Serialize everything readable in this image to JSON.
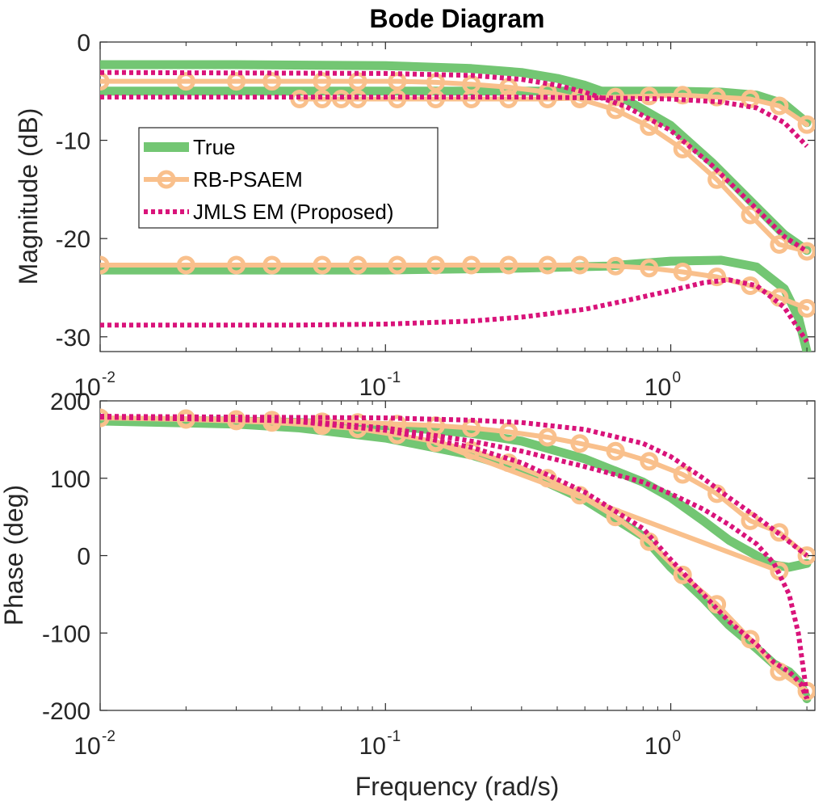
{
  "chart_data": [
    {
      "type": "line",
      "panel": "magnitude",
      "title": "Bode Diagram",
      "xlabel": "",
      "ylabel": "Magnitude (dB)",
      "xscale": "log",
      "xlim": [
        0.01,
        3.2
      ],
      "ylim": [
        -31.5,
        0
      ],
      "yticks": [
        0,
        -10,
        -20,
        -30
      ],
      "ytick_labels": [
        "0",
        "-10",
        "-20",
        "-30"
      ],
      "xticks": [
        0.01,
        0.1,
        1
      ],
      "xtick_labels": [
        {
          "base": "10",
          "exp": "-2"
        },
        {
          "base": "10",
          "exp": "-1"
        },
        {
          "base": "10",
          "exp": "0"
        }
      ],
      "grid": false,
      "legend": {
        "placement": "upper-left",
        "entries": [
          {
            "label": "True",
            "color": "#73c673",
            "style": "solid-thick"
          },
          {
            "label": "RB-PSAEM",
            "color": "#f9c08c",
            "style": "solid-circles"
          },
          {
            "label": "JMLS EM (Proposed)",
            "color": "#d9137a",
            "style": "dotted"
          }
        ]
      },
      "series": [
        {
          "legend": "True",
          "x": [
            0.01,
            0.03,
            0.1,
            0.2,
            0.3,
            0.4,
            0.5,
            0.7,
            1.0,
            1.4,
            2.0,
            2.5,
            3.0
          ],
          "y": [
            -2.3,
            -2.3,
            -2.4,
            -2.7,
            -3.1,
            -3.7,
            -4.4,
            -5.9,
            -8.5,
            -12.3,
            -16.8,
            -19.6,
            -21.2
          ]
        },
        {
          "legend": "True",
          "x": [
            0.01,
            0.1,
            0.3,
            0.6,
            1.0,
            1.5,
            2.0,
            2.5,
            3.0
          ],
          "y": [
            -5.0,
            -5.0,
            -5.0,
            -5.0,
            -5.0,
            -5.1,
            -5.4,
            -6.3,
            -8.2
          ]
        },
        {
          "legend": "True",
          "x": [
            0.01,
            0.1,
            0.3,
            0.6,
            1.0,
            1.5,
            2.0,
            2.5,
            2.8,
            3.0
          ],
          "y": [
            -23.2,
            -23.2,
            -23.0,
            -22.8,
            -22.3,
            -22.2,
            -22.9,
            -25.1,
            -28.0,
            -31.5
          ]
        },
        {
          "legend": "RB-PSAEM",
          "x": [
            0.01,
            0.02,
            0.03,
            0.04,
            0.06,
            0.08,
            0.11,
            0.15,
            0.2,
            0.27,
            0.37,
            0.48,
            0.64,
            0.84,
            1.1,
            1.45,
            1.9,
            2.4,
            3.0
          ],
          "y": [
            -4.0,
            -4.0,
            -4.0,
            -4.0,
            -4.0,
            -4.0,
            -4.0,
            -4.1,
            -4.3,
            -4.6,
            -5.1,
            -5.8,
            -6.9,
            -8.6,
            -10.9,
            -14.0,
            -17.6,
            -20.6,
            -21.3
          ]
        },
        {
          "legend": "RB-PSAEM",
          "x": [
            0.05,
            0.06,
            0.07,
            0.08,
            0.11,
            0.15,
            0.2,
            0.27,
            0.37,
            0.48,
            0.64,
            0.84,
            1.1,
            1.45,
            1.9,
            2.4,
            3.0
          ],
          "y": [
            -5.8,
            -5.8,
            -5.8,
            -5.8,
            -5.8,
            -5.8,
            -5.8,
            -5.8,
            -5.8,
            -5.7,
            -5.6,
            -5.5,
            -5.4,
            -5.6,
            -5.8,
            -6.5,
            -8.4
          ]
        },
        {
          "legend": "RB-PSAEM",
          "x": [
            0.01,
            0.02,
            0.03,
            0.04,
            0.06,
            0.08,
            0.11,
            0.15,
            0.2,
            0.27,
            0.37,
            0.48,
            0.64,
            0.84,
            1.1,
            1.45,
            1.9,
            2.4,
            3.0
          ],
          "y": [
            -22.7,
            -22.7,
            -22.7,
            -22.7,
            -22.7,
            -22.7,
            -22.7,
            -22.7,
            -22.7,
            -22.7,
            -22.7,
            -22.7,
            -22.8,
            -23.0,
            -23.4,
            -23.9,
            -24.8,
            -26.0,
            -27.1
          ]
        },
        {
          "legend": "JMLS EM (Proposed)",
          "x": [
            0.01,
            0.1,
            0.2,
            0.3,
            0.4,
            0.5,
            0.7,
            1.0,
            1.4,
            2.0,
            2.5,
            3.0
          ],
          "y": [
            -3.1,
            -3.2,
            -3.4,
            -3.8,
            -4.4,
            -5.1,
            -6.6,
            -9.0,
            -12.6,
            -17.0,
            -19.8,
            -21.3
          ]
        },
        {
          "legend": "JMLS EM (Proposed)",
          "x": [
            0.01,
            0.1,
            0.3,
            0.6,
            1.0,
            1.5,
            2.0,
            2.5,
            3.0
          ],
          "y": [
            -5.6,
            -5.6,
            -5.6,
            -5.7,
            -5.8,
            -6.1,
            -6.7,
            -8.2,
            -10.6
          ]
        },
        {
          "legend": "JMLS EM (Proposed)",
          "x": [
            0.01,
            0.05,
            0.1,
            0.2,
            0.3,
            0.5,
            0.7,
            1.0,
            1.3,
            1.6,
            2.0,
            2.5,
            3.0
          ],
          "y": [
            -28.8,
            -28.8,
            -28.7,
            -28.4,
            -28.0,
            -27.2,
            -26.3,
            -25.3,
            -24.5,
            -24.2,
            -24.8,
            -27.0,
            -30.5
          ]
        }
      ]
    },
    {
      "type": "line",
      "panel": "phase",
      "title": "",
      "xlabel": "Frequency (rad/s)",
      "ylabel": "Phase (deg)",
      "xscale": "log",
      "xlim": [
        0.01,
        3.2
      ],
      "ylim": [
        -200,
        200
      ],
      "yticks": [
        200,
        100,
        0,
        -100,
        -200
      ],
      "ytick_labels": [
        "200",
        "100",
        "0",
        "-100",
        "-200"
      ],
      "xticks": [
        0.01,
        0.1,
        1
      ],
      "xtick_labels": [
        {
          "base": "10",
          "exp": "-2"
        },
        {
          "base": "10",
          "exp": "-1"
        },
        {
          "base": "10",
          "exp": "0"
        }
      ],
      "grid": false,
      "series": [
        {
          "legend": "True",
          "x": [
            0.01,
            0.03,
            0.05,
            0.1,
            0.2,
            0.3,
            0.5,
            0.8,
            1.0,
            1.3,
            1.6,
            2.0,
            2.3,
            2.6,
            3.0
          ],
          "y": [
            175,
            174,
            172,
            168,
            158,
            148,
            125,
            95,
            75,
            45,
            20,
            0,
            -12,
            -15,
            -10
          ]
        },
        {
          "legend": "True",
          "x": [
            0.01,
            0.03,
            0.05,
            0.1,
            0.2,
            0.3,
            0.5,
            0.8,
            1.0,
            1.3,
            1.6,
            2.0,
            2.3,
            2.6,
            2.85,
            3.0
          ],
          "y": [
            174,
            170,
            165,
            152,
            130,
            110,
            72,
            25,
            -15,
            -55,
            -90,
            -120,
            -140,
            -150,
            -165,
            -185
          ]
        },
        {
          "legend": "RB-PSAEM",
          "x": [
            0.01,
            0.02,
            0.03,
            0.04,
            0.06,
            0.08,
            0.11,
            0.15,
            0.2,
            0.27,
            0.37,
            0.48,
            0.64,
            0.84,
            1.1,
            1.45,
            1.9,
            2.4,
            3.0
          ],
          "y": [
            178,
            177,
            176,
            175,
            173,
            172,
            170,
            168,
            165,
            160,
            153,
            145,
            135,
            122,
            105,
            80,
            45,
            30,
            0
          ]
        },
        {
          "legend": "RB-PSAEM",
          "x": [
            0.01,
            0.02,
            0.03,
            0.04,
            0.06,
            0.08,
            0.11,
            0.15,
            0.2,
            0.27,
            0.37,
            0.48,
            0.64,
            0.84,
            1.1,
            1.45,
            1.9,
            2.4,
            3.0
          ],
          "y": [
            178,
            176,
            174,
            172,
            168,
            164,
            156,
            147,
            136,
            120,
            100,
            78,
            50,
            18,
            -25,
            -63,
            -108,
            -150,
            -175
          ]
        },
        {
          "legend": "RB-PSAEM",
          "x": [
            0.15,
            2.4
          ],
          "y": [
            146,
            -20
          ]
        },
        {
          "legend": "JMLS EM (Proposed)",
          "x": [
            0.01,
            0.03,
            0.1,
            0.2,
            0.3,
            0.5,
            0.8,
            1.0,
            1.3,
            1.6,
            2.0,
            2.4,
            3.0
          ],
          "y": [
            180,
            179,
            178,
            175,
            172,
            163,
            145,
            128,
            100,
            75,
            50,
            28,
            0
          ]
        },
        {
          "legend": "JMLS EM (Proposed)",
          "x": [
            0.01,
            0.03,
            0.05,
            0.1,
            0.2,
            0.3,
            0.5,
            0.8,
            1.0,
            1.3,
            1.6,
            2.0,
            2.3,
            2.6,
            2.85,
            3.0
          ],
          "y": [
            180,
            177,
            173,
            162,
            140,
            120,
            82,
            35,
            -5,
            -50,
            -85,
            -115,
            -138,
            -150,
            -165,
            -185
          ]
        },
        {
          "legend": "JMLS EM (Proposed)",
          "x": [
            0.01,
            0.05,
            0.1,
            0.2,
            0.3,
            0.5,
            0.8,
            1.0,
            1.3,
            1.6,
            2.0,
            2.3,
            2.6,
            2.8,
            2.95,
            3.0
          ],
          "y": [
            179,
            174,
            165,
            148,
            135,
            115,
            95,
            80,
            60,
            40,
            15,
            -10,
            -50,
            -100,
            -160,
            -185
          ]
        }
      ]
    }
  ]
}
